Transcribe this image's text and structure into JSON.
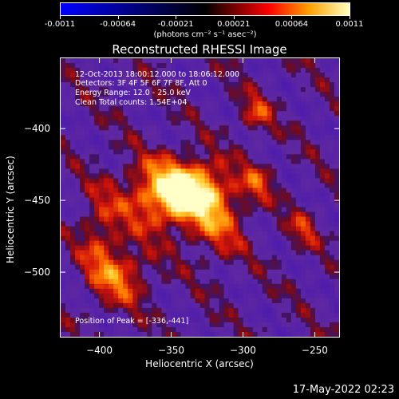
{
  "colorbar": {
    "tick_labels": [
      "-0.0011",
      "-0.00064",
      "-0.00021",
      "0.00021",
      "0.00064",
      "0.0011"
    ],
    "units": "(photons cm⁻² s⁻¹ asec⁻²)",
    "colors": [
      "#0000ff",
      "#000000",
      "#ff0000",
      "#ffa000",
      "#ffffc0"
    ]
  },
  "title": "Reconstructed RHESSI Image",
  "info": {
    "time_range": "12-Oct-2013 18:00:12.000 to 18:06:12.000",
    "detectors": "Detectors: 3F 4F 5F 6F 7F 8F, Att 0",
    "energy": "Energy Range: 12.0 - 25.0 keV",
    "method": "Clean    Total counts: 1.54E+04",
    "peak": "Position of Peak = [-336,-441]"
  },
  "timestamp": "17-May-2022 02:23",
  "chart_data": {
    "type": "heatmap",
    "title": "Reconstructed RHESSI Image",
    "xlabel": "Heliocentric X (arcsec)",
    "ylabel": "Heliocentric Y (arcsec)",
    "xlim": [
      -427,
      -233
    ],
    "ylim": [
      -545,
      -351
    ],
    "xticks": [
      -400,
      -350,
      -300,
      -250
    ],
    "yticks": [
      -400,
      -450,
      -500
    ],
    "xtick_labels": [
      "−400",
      "−350",
      "−300",
      "−250"
    ],
    "ytick_labels": [
      "−400",
      "−450",
      "−500"
    ],
    "peak": {
      "x": -336,
      "y": -441
    },
    "colorbar_range": [
      -0.0011,
      0.0011
    ],
    "sources": [
      {
        "x": -337,
        "y": -443,
        "sx": 18,
        "sy": 14,
        "amp": 1.0
      },
      {
        "x": -360,
        "y": -447,
        "sx": 20,
        "sy": 18,
        "amp": 0.55
      },
      {
        "x": -318,
        "y": -467,
        "sx": 14,
        "sy": 18,
        "amp": 0.45
      },
      {
        "x": -385,
        "y": -503,
        "sx": 14,
        "sy": 14,
        "amp": 0.55
      },
      {
        "x": -400,
        "y": -475,
        "sx": 10,
        "sy": 22,
        "amp": 0.4
      },
      {
        "x": -291,
        "y": -390,
        "sx": 8,
        "sy": 10,
        "amp": 0.45
      },
      {
        "x": -290,
        "y": -437,
        "sx": 8,
        "sy": 10,
        "amp": 0.4
      },
      {
        "x": -258,
        "y": -470,
        "sx": 8,
        "sy": 10,
        "amp": 0.35
      }
    ]
  }
}
